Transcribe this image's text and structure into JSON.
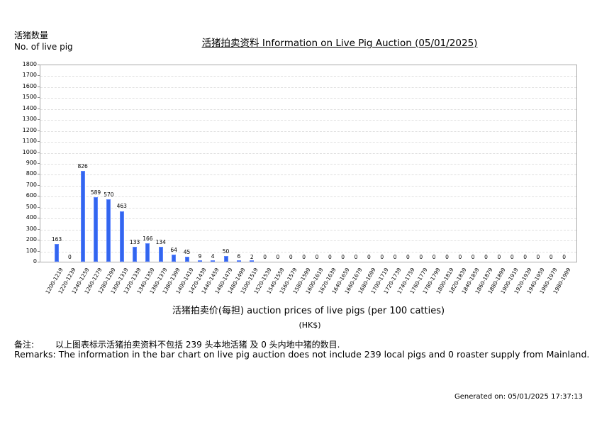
{
  "header": {
    "ylabel_cn": "活猪数量",
    "ylabel_en": "No. of live pig",
    "title": "活猪拍卖资料 Information on Live Pig Auction (05/01/2025)"
  },
  "axis": {
    "xlabel": "活猪拍卖价(每担) auction prices of live pigs (per 100 catties)",
    "xunit": "(HK$)"
  },
  "remarks": {
    "cn_label": "备注:",
    "cn_text": "以上图表标示活猪拍卖资料不包括 239 头本地活猪 及 0 头内地中猪的数目.",
    "en_text": "Remarks: The information in the bar chart on live pig auction does not include 239 local pigs and 0 roaster supply from Mainland."
  },
  "footer": {
    "generated": "Generated on: 05/01/2025 17:37:13"
  },
  "colors": {
    "bar": "#3366ee",
    "grid": "#e0e0e0",
    "border": "#aaaaaa"
  },
  "chart_data": {
    "type": "bar",
    "title": "活猪拍卖资料 Information on Live Pig Auction (05/01/2025)",
    "xlabel": "活猪拍卖价(每担) auction prices of live pigs (per 100 catties) (HK$)",
    "ylabel": "活猪数量 No. of live pig",
    "ylim": [
      0,
      1800
    ],
    "yticks": [
      0,
      100,
      200,
      300,
      400,
      500,
      600,
      700,
      800,
      900,
      1000,
      1100,
      1200,
      1300,
      1400,
      1500,
      1600,
      1700,
      1800
    ],
    "grid": true,
    "legend": null,
    "categories": [
      "1200-1219",
      "1220-1239",
      "1240-1259",
      "1260-1279",
      "1280-1299",
      "1300-1319",
      "1320-1339",
      "1340-1359",
      "1360-1379",
      "1380-1399",
      "1400-1419",
      "1420-1439",
      "1440-1459",
      "1460-1479",
      "1480-1499",
      "1500-1519",
      "1520-1539",
      "1540-1559",
      "1560-1579",
      "1580-1599",
      "1600-1619",
      "1620-1639",
      "1640-1659",
      "1660-1679",
      "1680-1699",
      "1700-1719",
      "1720-1739",
      "1740-1759",
      "1760-1779",
      "1780-1799",
      "1800-1819",
      "1820-1839",
      "1840-1859",
      "1860-1879",
      "1880-1899",
      "1900-1919",
      "1920-1939",
      "1940-1959",
      "1960-1979",
      "1980-1999"
    ],
    "values": [
      163,
      0,
      826,
      589,
      570,
      463,
      133,
      166,
      134,
      64,
      45,
      9,
      4,
      50,
      6,
      2,
      0,
      0,
      0,
      0,
      0,
      0,
      0,
      0,
      0,
      0,
      0,
      0,
      0,
      0,
      0,
      0,
      0,
      0,
      0,
      0,
      0,
      0,
      0,
      0
    ]
  }
}
